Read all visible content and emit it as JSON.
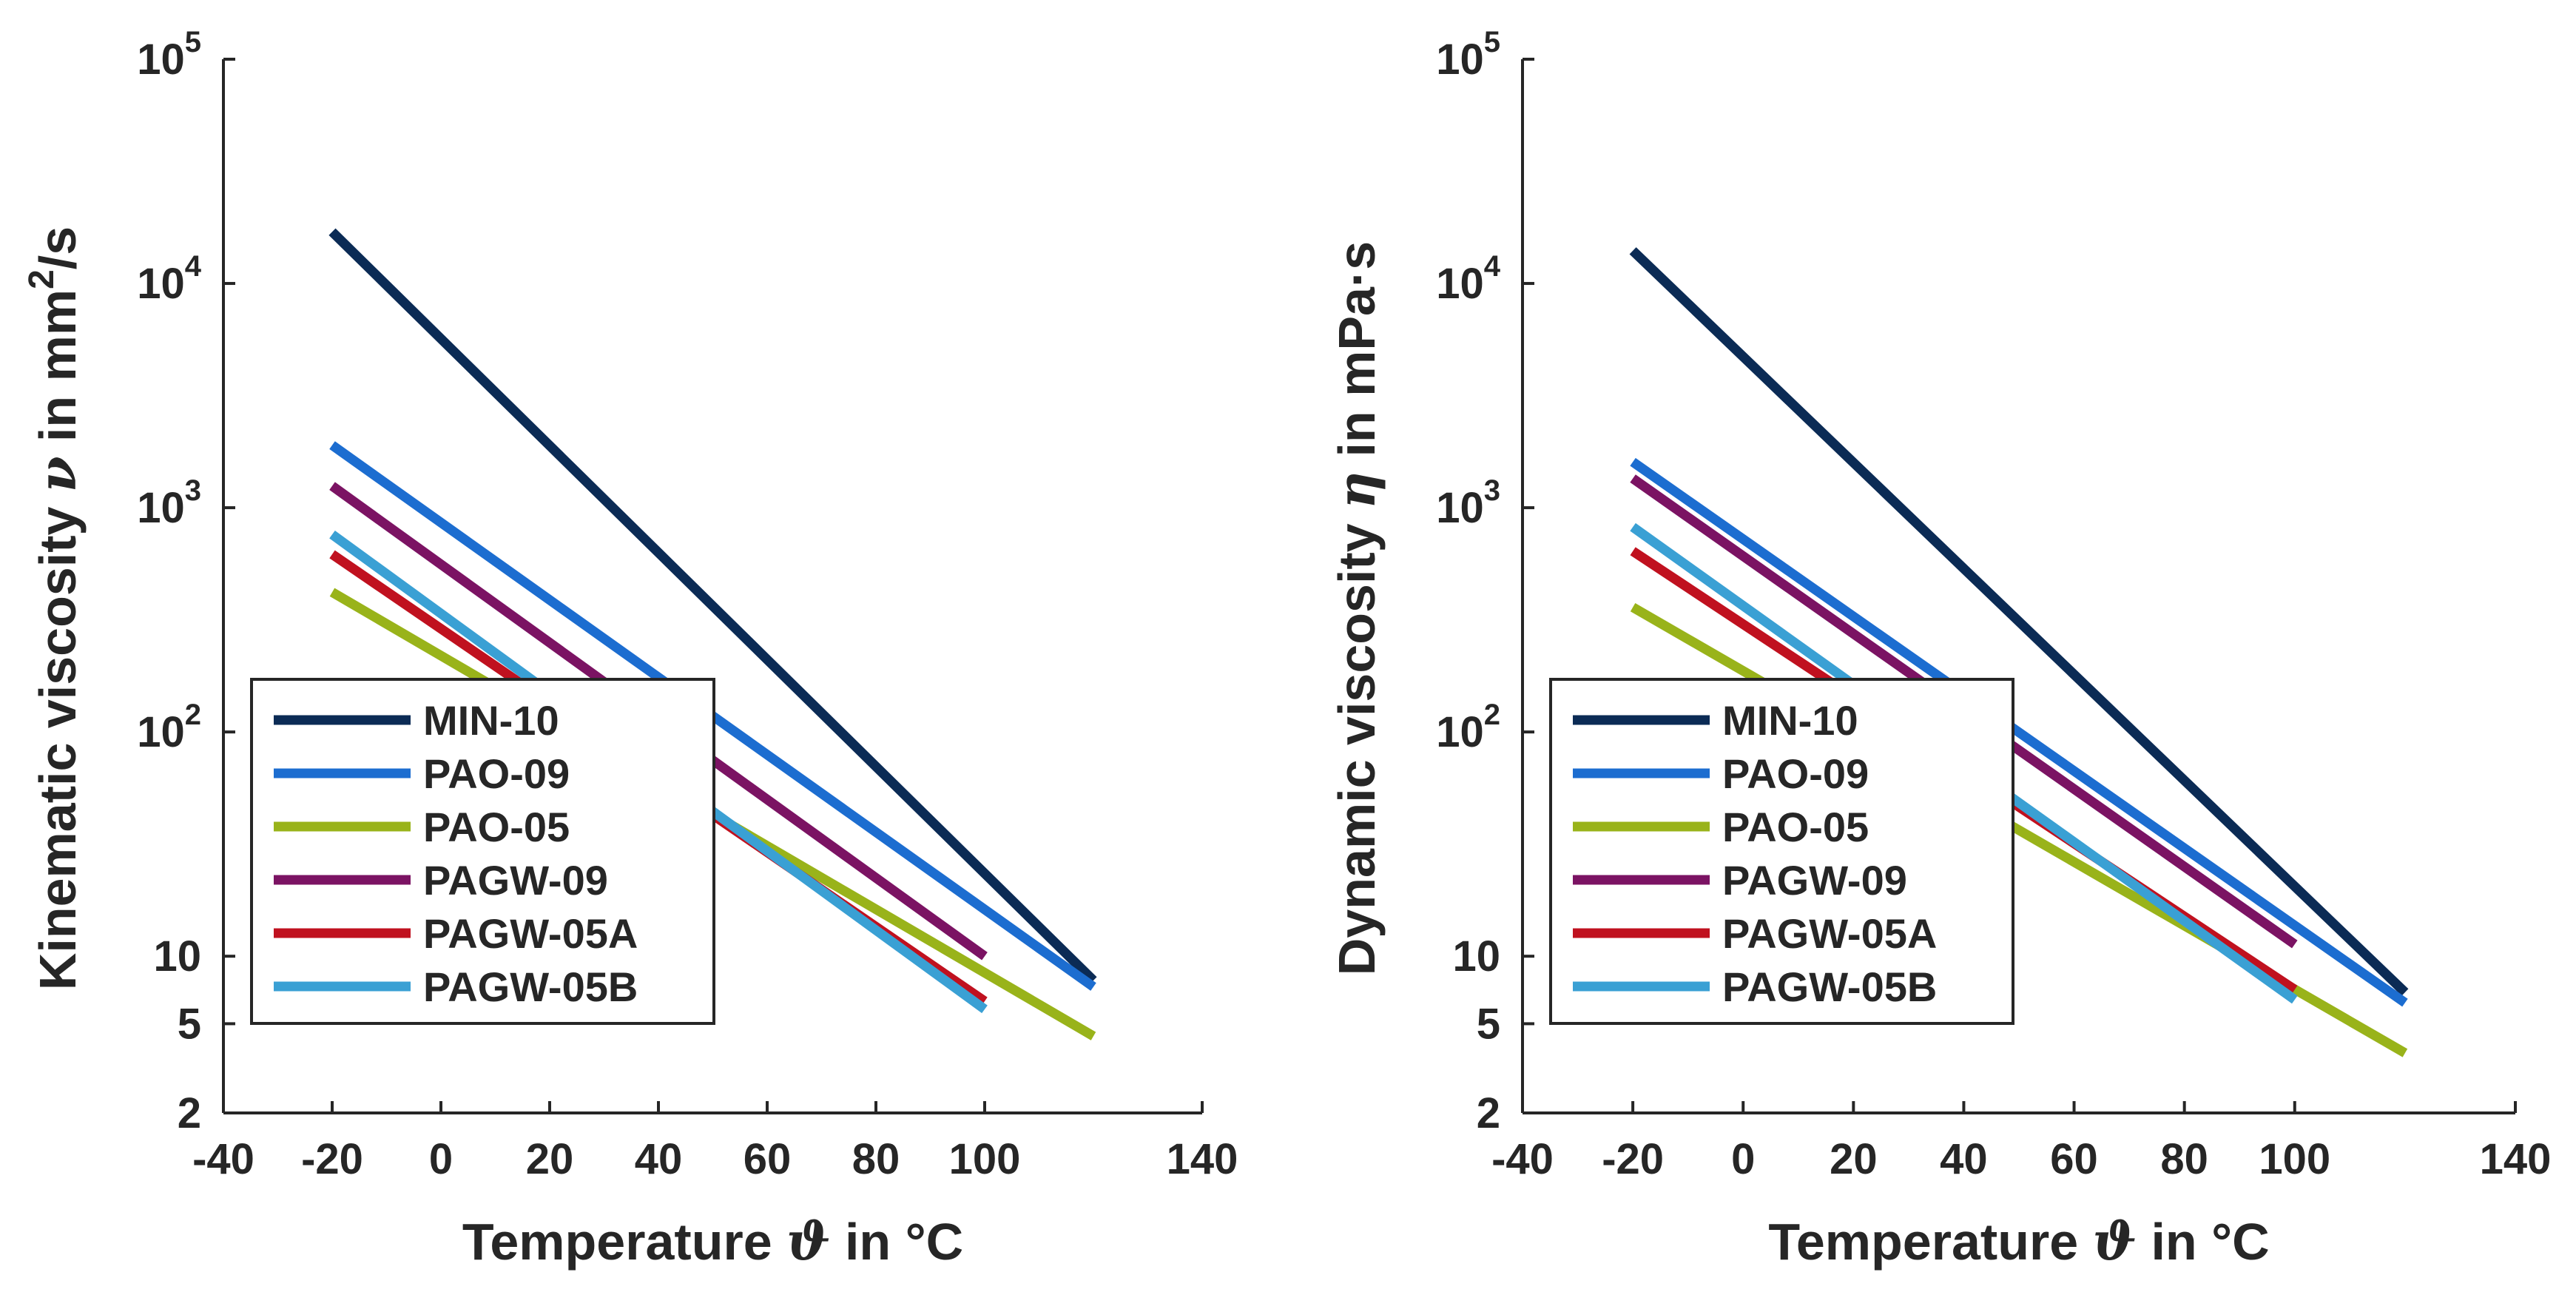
{
  "series_styles": {
    "MIN-10": "#0b2b55",
    "PAO-09": "#1c6dd0",
    "PAO-05": "#99b31a",
    "PAGW-09": "#7b1363",
    "PAGW-05A": "#c0111f",
    "PAGW-05B": "#3aa0d4"
  },
  "chart_data": [
    {
      "type": "line",
      "yscale": "log",
      "xlabel": {
        "pre": "Temperature ",
        "symbol": "ϑ",
        "post": " in °C"
      },
      "ylabel": {
        "pre": "Kinematic viscosity ",
        "symbol": "ν",
        "post": " in mm",
        "sup": "2",
        "tail": "/s"
      },
      "xlim": [
        -40,
        140
      ],
      "ylim": [
        2,
        100000
      ],
      "xticks": [
        {
          "v": -40,
          "label": "-40"
        },
        {
          "v": -20,
          "label": "-20"
        },
        {
          "v": 0,
          "label": "0"
        },
        {
          "v": 20,
          "label": "20"
        },
        {
          "v": 40,
          "label": "40"
        },
        {
          "v": 60,
          "label": "60"
        },
        {
          "v": 80,
          "label": "80"
        },
        {
          "v": 100,
          "label": "100"
        },
        {
          "v": 140,
          "label": "140"
        }
      ],
      "yticks": [
        {
          "v": 2,
          "label": "2"
        },
        {
          "v": 5,
          "label": "5"
        },
        {
          "v": 10,
          "label": "10"
        },
        {
          "v": 100,
          "base": "10",
          "exp": "2"
        },
        {
          "v": 1000,
          "base": "10",
          "exp": "3"
        },
        {
          "v": 10000,
          "base": "10",
          "exp": "4"
        },
        {
          "v": 100000,
          "base": "10",
          "exp": "5"
        }
      ],
      "series": [
        {
          "name": "MIN-10",
          "x": [
            -20,
            120
          ],
          "y": [
            17000,
            7.8
          ]
        },
        {
          "name": "PAO-09",
          "x": [
            -20,
            120
          ],
          "y": [
            1900,
            7.3
          ]
        },
        {
          "name": "PAO-05",
          "x": [
            -20,
            120
          ],
          "y": [
            420,
            4.4
          ]
        },
        {
          "name": "PAGW-09",
          "x": [
            -20,
            100
          ],
          "y": [
            1250,
            10
          ]
        },
        {
          "name": "PAGW-05A",
          "x": [
            -20,
            100
          ],
          "y": [
            620,
            6.3
          ]
        },
        {
          "name": "PAGW-05B",
          "x": [
            -20,
            100
          ],
          "y": [
            760,
            5.8
          ]
        }
      ],
      "legend": "bottom-left"
    },
    {
      "type": "line",
      "yscale": "log",
      "xlabel": {
        "pre": "Temperature ",
        "symbol": "ϑ",
        "post": " in °C"
      },
      "ylabel": {
        "pre": "Dynamic viscosity ",
        "symbol": "η",
        "post": " in mPa·s",
        "sup": "",
        "tail": ""
      },
      "xlim": [
        -40,
        140
      ],
      "ylim": [
        2,
        100000
      ],
      "xticks": [
        {
          "v": -40,
          "label": "-40"
        },
        {
          "v": -20,
          "label": "-20"
        },
        {
          "v": 0,
          "label": "0"
        },
        {
          "v": 20,
          "label": "20"
        },
        {
          "v": 40,
          "label": "40"
        },
        {
          "v": 60,
          "label": "60"
        },
        {
          "v": 80,
          "label": "80"
        },
        {
          "v": 100,
          "label": "100"
        },
        {
          "v": 140,
          "label": "140"
        }
      ],
      "yticks": [
        {
          "v": 2,
          "label": "2"
        },
        {
          "v": 5,
          "label": "5"
        },
        {
          "v": 10,
          "label": "10"
        },
        {
          "v": 100,
          "base": "10",
          "exp": "2"
        },
        {
          "v": 1000,
          "base": "10",
          "exp": "3"
        },
        {
          "v": 10000,
          "base": "10",
          "exp": "4"
        },
        {
          "v": 100000,
          "base": "10",
          "exp": "5"
        }
      ],
      "series": [
        {
          "name": "MIN-10",
          "x": [
            -20,
            120
          ],
          "y": [
            14000,
            6.9
          ]
        },
        {
          "name": "PAO-09",
          "x": [
            -20,
            120
          ],
          "y": [
            1600,
            6.2
          ]
        },
        {
          "name": "PAO-05",
          "x": [
            -20,
            120
          ],
          "y": [
            360,
            3.7
          ]
        },
        {
          "name": "PAGW-09",
          "x": [
            -20,
            100
          ],
          "y": [
            1350,
            11.3
          ]
        },
        {
          "name": "PAGW-05A",
          "x": [
            -20,
            100
          ],
          "y": [
            640,
            7.1
          ]
        },
        {
          "name": "PAGW-05B",
          "x": [
            -20,
            100
          ],
          "y": [
            820,
            6.4
          ]
        }
      ],
      "legend": "bottom-left"
    }
  ]
}
